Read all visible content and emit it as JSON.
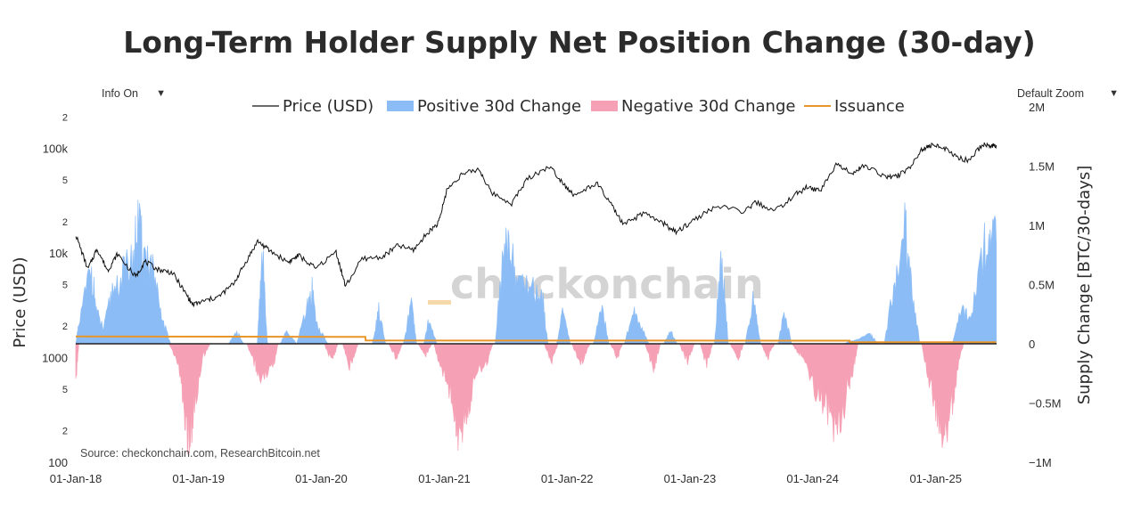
{
  "title": "Long-Term Holder Supply Net Position Change (30-day)",
  "controls": {
    "info_label": "Info On",
    "zoom_label": "Default Zoom"
  },
  "source": "Source: checkonchain.com, ResearchBitcoin.net",
  "watermark": "checkonchain",
  "colors": {
    "price": "#111111",
    "positive": "#8cbcf5",
    "negative": "#f5a0b4",
    "issuance": "#e8962a",
    "zero_line": "#222222"
  },
  "chart_data": {
    "type": "area",
    "title": "Long-Term Holder Supply Net Position Change (30-day)",
    "legend": {
      "placement": "top-center",
      "entries": [
        "Price (USD)",
        "Positive 30d Change",
        "Negative 30d Change",
        "Issuance"
      ]
    },
    "x_axis": {
      "type": "date",
      "range": [
        "2018-01-01",
        "2025-07-01"
      ],
      "ticks": [
        "2018-01-01",
        "2019-01-01",
        "2020-01-01",
        "2021-01-01",
        "2022-01-01",
        "2023-01-01",
        "2024-01-01",
        "2025-01-01"
      ],
      "tick_labels": [
        "01-Jan-18",
        "01-Jan-19",
        "01-Jan-20",
        "01-Jan-21",
        "01-Jan-22",
        "01-Jan-23",
        "01-Jan-24",
        "01-Jan-25"
      ]
    },
    "y_left": {
      "label": "Price (USD)",
      "scale": "log",
      "range": [
        100,
        250000
      ],
      "major_ticks": [
        100,
        1000,
        10000,
        100000
      ],
      "major_labels": [
        "100",
        "1000",
        "10k",
        "100k"
      ],
      "minor_ticks": [
        200,
        500,
        2000,
        5000,
        20000,
        50000,
        200000
      ],
      "minor_labels": [
        "2",
        "5",
        "2",
        "5",
        "2",
        "5",
        "2"
      ]
    },
    "y_right": {
      "label": "Supply Change [BTC/30-days]",
      "scale": "linear",
      "range": [
        -1000000,
        2000000
      ],
      "ticks": [
        -1000000,
        -500000,
        0,
        500000,
        1000000,
        1500000,
        2000000
      ],
      "tick_labels": [
        "−1M",
        "−0.5M",
        "0",
        "0.5M",
        "1M",
        "1.5M",
        "2M"
      ]
    },
    "series": [
      {
        "name": "Price (USD)",
        "axis": "left",
        "points": [
          [
            "2018-01-01",
            15000
          ],
          [
            "2018-02-06",
            7000
          ],
          [
            "2018-03-05",
            11000
          ],
          [
            "2018-04-06",
            6800
          ],
          [
            "2018-05-05",
            9800
          ],
          [
            "2018-06-28",
            5900
          ],
          [
            "2018-07-25",
            8300
          ],
          [
            "2018-09-01",
            7000
          ],
          [
            "2018-10-15",
            6500
          ],
          [
            "2018-11-20",
            4300
          ],
          [
            "2018-12-15",
            3200
          ],
          [
            "2019-01-20",
            3500
          ],
          [
            "2019-03-01",
            3800
          ],
          [
            "2019-04-15",
            5100
          ],
          [
            "2019-05-20",
            8000
          ],
          [
            "2019-06-26",
            13000
          ],
          [
            "2019-08-01",
            10500
          ],
          [
            "2019-09-25",
            8200
          ],
          [
            "2019-10-26",
            9500
          ],
          [
            "2019-12-15",
            7100
          ],
          [
            "2020-02-14",
            10300
          ],
          [
            "2020-03-13",
            4800
          ],
          [
            "2020-05-01",
            8800
          ],
          [
            "2020-07-01",
            9200
          ],
          [
            "2020-08-15",
            11800
          ],
          [
            "2020-10-01",
            10700
          ],
          [
            "2020-11-15",
            16000
          ],
          [
            "2020-12-15",
            19500
          ],
          [
            "2021-01-08",
            40000
          ],
          [
            "2021-02-20",
            56000
          ],
          [
            "2021-04-14",
            63500
          ],
          [
            "2021-05-20",
            38000
          ],
          [
            "2021-07-20",
            29800
          ],
          [
            "2021-09-06",
            52000
          ],
          [
            "2021-11-10",
            67500
          ],
          [
            "2021-12-20",
            47000
          ],
          [
            "2022-01-24",
            35000
          ],
          [
            "2022-03-29",
            47000
          ],
          [
            "2022-05-12",
            29000
          ],
          [
            "2022-06-18",
            18500
          ],
          [
            "2022-08-15",
            24000
          ],
          [
            "2022-10-15",
            19200
          ],
          [
            "2022-11-21",
            15700
          ],
          [
            "2023-01-15",
            21000
          ],
          [
            "2023-03-20",
            28000
          ],
          [
            "2023-06-15",
            25000
          ],
          [
            "2023-07-15",
            30500
          ],
          [
            "2023-09-11",
            25200
          ],
          [
            "2023-11-15",
            37000
          ],
          [
            "2023-12-15",
            42500
          ],
          [
            "2024-01-23",
            39500
          ],
          [
            "2024-03-14",
            72000
          ],
          [
            "2024-05-01",
            58000
          ],
          [
            "2024-06-01",
            69000
          ],
          [
            "2024-08-05",
            54000
          ],
          [
            "2024-09-06",
            53500
          ],
          [
            "2024-10-15",
            66000
          ],
          [
            "2024-11-22",
            98000
          ],
          [
            "2024-12-17",
            106000
          ],
          [
            "2025-01-20",
            105000
          ],
          [
            "2025-02-28",
            84000
          ],
          [
            "2025-04-08",
            76500
          ],
          [
            "2025-05-22",
            110000
          ],
          [
            "2025-06-15",
            105500
          ],
          [
            "2025-06-30",
            107500
          ]
        ]
      },
      {
        "name": "Positive 30d Change",
        "axis": "right",
        "points": [
          [
            "2018-01-01",
            0
          ],
          [
            "2018-01-10",
            150000
          ],
          [
            "2018-02-15",
            650000
          ],
          [
            "2018-03-05",
            250000
          ],
          [
            "2018-03-25",
            120000
          ],
          [
            "2018-04-20",
            450000
          ],
          [
            "2018-05-25",
            600000
          ],
          [
            "2018-06-20",
            700000
          ],
          [
            "2018-07-05",
            1020000
          ],
          [
            "2018-07-20",
            780000
          ],
          [
            "2018-08-15",
            650000
          ],
          [
            "2018-09-10",
            250000
          ],
          [
            "2018-10-10",
            0
          ],
          [
            "2018-12-01",
            0
          ],
          [
            "2019-04-01",
            0
          ],
          [
            "2019-04-25",
            100000
          ],
          [
            "2019-05-15",
            0
          ],
          [
            "2019-06-25",
            0
          ],
          [
            "2019-07-10",
            780000
          ],
          [
            "2019-07-25",
            0
          ],
          [
            "2019-09-01",
            0
          ],
          [
            "2019-09-20",
            100000
          ],
          [
            "2019-10-20",
            0
          ],
          [
            "2019-11-15",
            250000
          ],
          [
            "2019-12-05",
            450000
          ],
          [
            "2019-12-20",
            150000
          ],
          [
            "2020-01-20",
            0
          ],
          [
            "2020-06-01",
            0
          ],
          [
            "2020-06-20",
            280000
          ],
          [
            "2020-07-10",
            0
          ],
          [
            "2020-09-01",
            0
          ],
          [
            "2020-09-25",
            330000
          ],
          [
            "2020-10-10",
            0
          ],
          [
            "2020-11-01",
            0
          ],
          [
            "2020-11-15",
            190000
          ],
          [
            "2020-12-10",
            0
          ],
          [
            "2021-06-01",
            0
          ],
          [
            "2021-06-20",
            600000
          ],
          [
            "2021-07-12",
            900000
          ],
          [
            "2021-08-05",
            520000
          ],
          [
            "2021-09-15",
            500000
          ],
          [
            "2021-10-20",
            380000
          ],
          [
            "2021-11-05",
            0
          ],
          [
            "2021-12-01",
            0
          ],
          [
            "2021-12-20",
            270000
          ],
          [
            "2022-01-10",
            0
          ],
          [
            "2022-03-20",
            0
          ],
          [
            "2022-04-15",
            310000
          ],
          [
            "2022-05-05",
            0
          ],
          [
            "2022-06-20",
            0
          ],
          [
            "2022-07-20",
            280000
          ],
          [
            "2022-08-10",
            140000
          ],
          [
            "2022-09-01",
            0
          ],
          [
            "2022-10-15",
            0
          ],
          [
            "2022-11-05",
            100000
          ],
          [
            "2022-11-25",
            0
          ],
          [
            "2023-03-15",
            0
          ],
          [
            "2023-04-05",
            760000
          ],
          [
            "2023-04-25",
            0
          ],
          [
            "2023-06-15",
            0
          ],
          [
            "2023-07-10",
            400000
          ],
          [
            "2023-07-30",
            0
          ],
          [
            "2023-09-20",
            0
          ],
          [
            "2023-10-10",
            280000
          ],
          [
            "2023-10-30",
            0
          ],
          [
            "2024-04-01",
            0
          ],
          [
            "2024-06-20",
            80000
          ],
          [
            "2024-07-15",
            0
          ],
          [
            "2024-08-01",
            0
          ],
          [
            "2024-09-01",
            500000
          ],
          [
            "2024-10-01",
            1000000
          ],
          [
            "2024-10-20",
            480000
          ],
          [
            "2024-11-15",
            0
          ],
          [
            "2025-02-20",
            0
          ],
          [
            "2025-03-20",
            310000
          ],
          [
            "2025-04-15",
            200000
          ],
          [
            "2025-05-20",
            750000
          ],
          [
            "2025-06-10",
            930000
          ],
          [
            "2025-06-30",
            850000
          ]
        ]
      },
      {
        "name": "Negative 30d Change",
        "axis": "right",
        "points": [
          [
            "2018-01-01",
            -300000
          ],
          [
            "2018-01-10",
            0
          ],
          [
            "2018-10-05",
            0
          ],
          [
            "2018-11-01",
            -150000
          ],
          [
            "2018-11-20",
            -550000
          ],
          [
            "2018-12-05",
            -920000
          ],
          [
            "2018-12-20",
            -500000
          ],
          [
            "2019-01-15",
            -100000
          ],
          [
            "2019-02-05",
            0
          ],
          [
            "2019-05-25",
            0
          ],
          [
            "2019-06-15",
            -150000
          ],
          [
            "2019-07-05",
            -290000
          ],
          [
            "2019-08-10",
            -210000
          ],
          [
            "2019-08-25",
            0
          ],
          [
            "2020-01-10",
            0
          ],
          [
            "2020-02-01",
            -150000
          ],
          [
            "2020-02-20",
            0
          ],
          [
            "2020-03-05",
            0
          ],
          [
            "2020-03-25",
            -200000
          ],
          [
            "2020-04-20",
            0
          ],
          [
            "2020-07-20",
            0
          ],
          [
            "2020-08-10",
            -120000
          ],
          [
            "2020-08-30",
            0
          ],
          [
            "2020-10-15",
            0
          ],
          [
            "2020-11-05",
            -100000
          ],
          [
            "2020-11-25",
            0
          ],
          [
            "2020-12-01",
            0
          ],
          [
            "2020-12-20",
            -200000
          ],
          [
            "2021-01-15",
            -380000
          ],
          [
            "2021-02-01",
            -600000
          ],
          [
            "2021-02-20",
            -870000
          ],
          [
            "2021-03-10",
            -600000
          ],
          [
            "2021-04-01",
            -250000
          ],
          [
            "2021-05-05",
            -180000
          ],
          [
            "2021-05-25",
            0
          ],
          [
            "2021-10-25",
            0
          ],
          [
            "2021-11-15",
            -150000
          ],
          [
            "2021-12-05",
            0
          ],
          [
            "2022-01-15",
            0
          ],
          [
            "2022-02-10",
            -170000
          ],
          [
            "2022-03-10",
            0
          ],
          [
            "2022-05-10",
            0
          ],
          [
            "2022-05-30",
            -120000
          ],
          [
            "2022-06-15",
            0
          ],
          [
            "2022-08-20",
            0
          ],
          [
            "2022-09-15",
            -220000
          ],
          [
            "2022-10-05",
            0
          ],
          [
            "2022-12-01",
            0
          ],
          [
            "2022-12-25",
            -150000
          ],
          [
            "2023-01-15",
            0
          ],
          [
            "2023-02-01",
            0
          ],
          [
            "2023-02-20",
            -180000
          ],
          [
            "2023-03-10",
            0
          ],
          [
            "2023-05-01",
            0
          ],
          [
            "2023-05-25",
            -130000
          ],
          [
            "2023-06-10",
            0
          ],
          [
            "2023-08-01",
            0
          ],
          [
            "2023-08-20",
            -120000
          ],
          [
            "2023-09-10",
            0
          ],
          [
            "2023-11-01",
            0
          ],
          [
            "2023-12-01",
            -120000
          ],
          [
            "2024-01-15",
            -420000
          ],
          [
            "2024-02-15",
            -560000
          ],
          [
            "2024-03-15",
            -750000
          ],
          [
            "2024-04-10",
            -450000
          ],
          [
            "2024-05-01",
            -200000
          ],
          [
            "2024-05-15",
            0
          ],
          [
            "2024-11-20",
            0
          ],
          [
            "2024-12-15",
            -350000
          ],
          [
            "2025-01-01",
            -520000
          ],
          [
            "2025-01-25",
            -780000
          ],
          [
            "2025-02-20",
            -500000
          ],
          [
            "2025-03-10",
            -150000
          ],
          [
            "2025-03-25",
            0
          ]
        ]
      },
      {
        "name": "Issuance",
        "axis": "right",
        "points": [
          [
            "2018-01-01",
            62000
          ],
          [
            "2020-05-11",
            58000
          ],
          [
            "2020-05-12",
            28000
          ],
          [
            "2024-04-20",
            26000
          ],
          [
            "2024-04-21",
            13500
          ],
          [
            "2025-06-30",
            13500
          ]
        ]
      }
    ]
  }
}
